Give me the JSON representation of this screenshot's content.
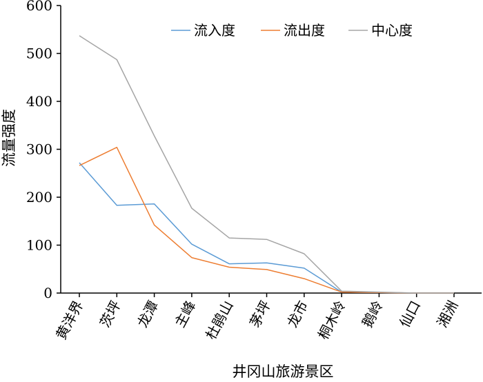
{
  "chart_data": {
    "type": "line",
    "title": "",
    "xlabel": "井冈山旅游景区",
    "ylabel": "流量强度",
    "ylim": [
      0,
      600
    ],
    "yticks": [
      0,
      100,
      200,
      300,
      400,
      500,
      600
    ],
    "categories": [
      "黄洋界",
      "茨坪",
      "龙潭",
      "主峰",
      "杜鹃山",
      "茅坪",
      "龙市",
      "桐木岭",
      "鹅岭",
      "仙口",
      "湘洲"
    ],
    "series": [
      {
        "name": "流入度",
        "color": "#5b9bd5",
        "values": [
          272,
          183,
          186,
          102,
          61,
          63,
          52,
          2,
          1,
          0,
          0
        ]
      },
      {
        "name": "流出度",
        "color": "#ed7d31",
        "values": [
          266,
          304,
          142,
          74,
          54,
          49,
          30,
          2,
          1,
          0,
          0
        ]
      },
      {
        "name": "中心度",
        "color": "#a5a5a5",
        "values": [
          537,
          487,
          328,
          177,
          115,
          112,
          82,
          4,
          2,
          0,
          0
        ]
      }
    ],
    "legend_position": "top-right",
    "grid": false
  }
}
